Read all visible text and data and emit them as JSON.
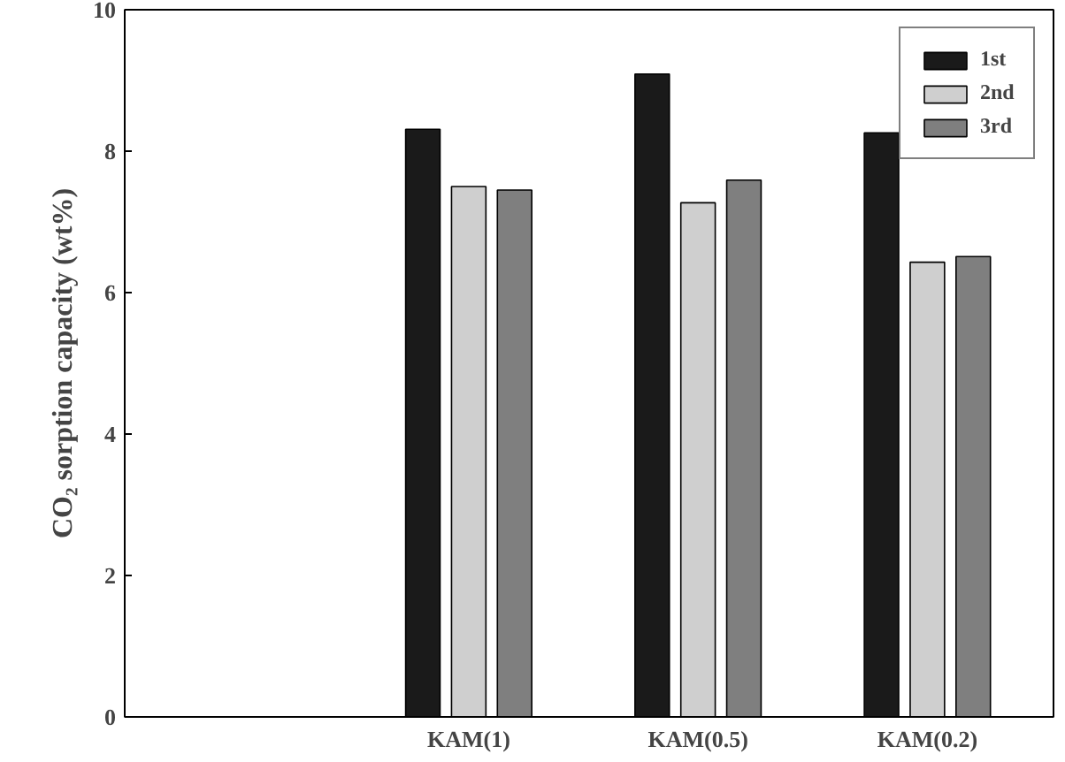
{
  "chart_data": {
    "type": "bar",
    "ylabel": "CO₂ sorption capacity (wt%)",
    "categories": [
      null,
      "KAM(1)",
      "KAM(0.5)",
      "KAM(0.2)"
    ],
    "series": [
      {
        "name": "1st",
        "color": "#1a1a1a",
        "values": [
          null,
          8.31,
          9.09,
          8.26
        ]
      },
      {
        "name": "2nd",
        "color": "#cfcfcf",
        "values": [
          null,
          7.5,
          7.27,
          6.43
        ]
      },
      {
        "name": "3rd",
        "color": "#7f7f7f",
        "values": [
          null,
          7.45,
          7.59,
          6.51
        ]
      }
    ],
    "ylim": [
      0,
      10
    ],
    "yticks": [
      0,
      2,
      4,
      6,
      8,
      10
    ],
    "grid": false,
    "legend": "top right"
  }
}
